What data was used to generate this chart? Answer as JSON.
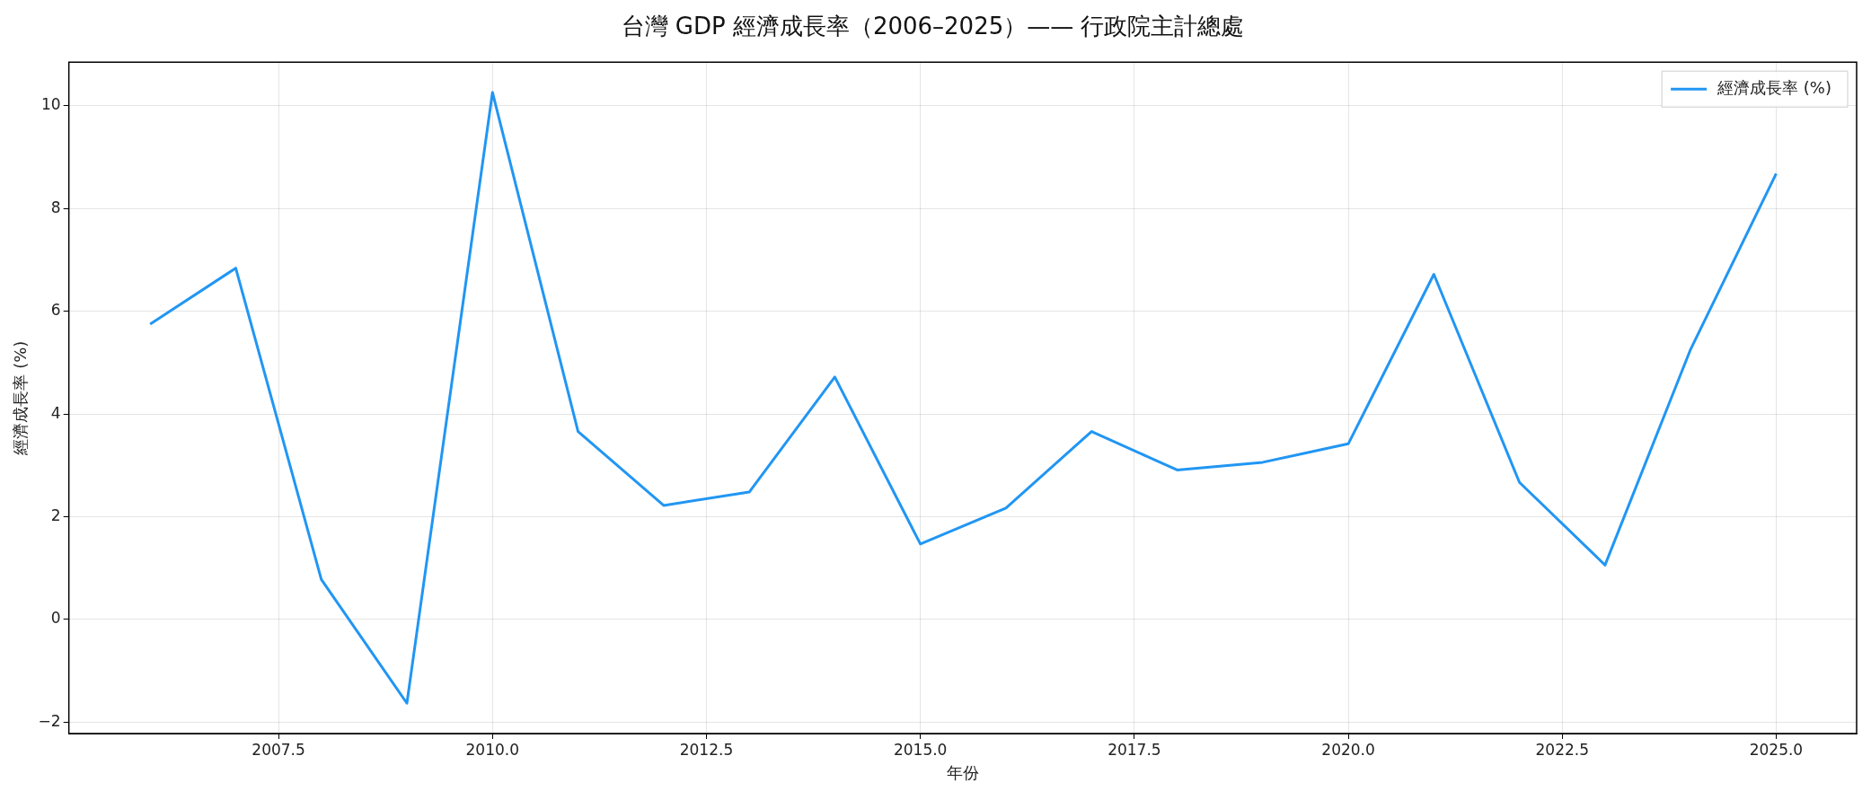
{
  "chart_data": {
    "type": "line",
    "title": "台灣 GDP 經濟成長率（2006–2025）—— 行政院主計總處",
    "xlabel": "年份",
    "ylabel": "經濟成長率 (%)",
    "x": [
      2006,
      2007,
      2008,
      2009,
      2010,
      2011,
      2012,
      2013,
      2014,
      2015,
      2016,
      2017,
      2018,
      2019,
      2020,
      2021,
      2022,
      2023,
      2024,
      2025
    ],
    "series": [
      {
        "name": "經濟成長率 (%)",
        "color": "#2196f3",
        "values": [
          5.75,
          6.84,
          0.78,
          -1.63,
          10.26,
          3.66,
          2.22,
          2.48,
          4.72,
          1.47,
          2.17,
          3.66,
          2.91,
          3.06,
          3.42,
          6.72,
          2.67,
          1.06,
          5.26,
          8.68
        ]
      }
    ],
    "xlim": [
      2005.05,
      2025.94
    ],
    "ylim": [
      -2.22,
      10.85
    ],
    "xticks": [
      2007.5,
      {
        "value": 2010,
        "label": "2010.0"
      },
      2012.5,
      {
        "value": 2015,
        "label": "2015.0"
      },
      2017.5,
      {
        "value": 2020,
        "label": "2020.0"
      },
      2022.5,
      {
        "value": 2025,
        "label": "2025.0"
      }
    ],
    "yticks": [
      {
        "value": -2,
        "label": "−2"
      },
      0,
      2,
      4,
      6,
      8,
      10
    ],
    "grid": true,
    "legend": "top right",
    "marker": "none",
    "line_style": "solid"
  }
}
